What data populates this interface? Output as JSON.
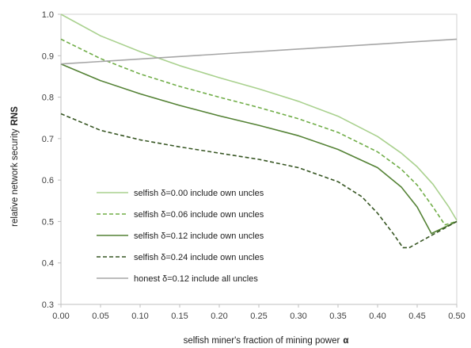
{
  "chart_data": {
    "type": "line",
    "xlabel": "selfish miner's fraction of mining power",
    "xlabel_symbol": "α",
    "ylabel": "relative network security",
    "ylabel_symbol": "RNS",
    "xlim": [
      0.0,
      0.5
    ],
    "ylim": [
      0.3,
      1.0
    ],
    "x_ticks": [
      "0.00",
      "0.05",
      "0.10",
      "0.15",
      "0.20",
      "0.25",
      "0.30",
      "0.35",
      "0.40",
      "0.45",
      "0.50"
    ],
    "y_ticks": [
      "0.3",
      "0.4",
      "0.5",
      "0.6",
      "0.7",
      "0.8",
      "0.9",
      "1.0"
    ],
    "grid": false,
    "legend_position": "lower-left",
    "series": [
      {
        "name": "selfish δ=0.00 include own uncles",
        "color": "#a9d18e",
        "dash": "solid",
        "x": [
          0.0,
          0.05,
          0.1,
          0.15,
          0.2,
          0.25,
          0.3,
          0.35,
          0.4,
          0.43,
          0.45,
          0.47,
          0.49,
          0.5
        ],
        "y": [
          1.0,
          0.948,
          0.91,
          0.876,
          0.847,
          0.82,
          0.79,
          0.754,
          0.705,
          0.665,
          0.632,
          0.59,
          0.535,
          0.503
        ]
      },
      {
        "name": "selfish δ=0.06 include own uncles",
        "color": "#70ad47",
        "dash": "dashed",
        "x": [
          0.0,
          0.05,
          0.1,
          0.15,
          0.2,
          0.25,
          0.3,
          0.35,
          0.4,
          0.43,
          0.45,
          0.47,
          0.485,
          0.5
        ],
        "y": [
          0.94,
          0.893,
          0.856,
          0.826,
          0.8,
          0.775,
          0.748,
          0.715,
          0.668,
          0.626,
          0.588,
          0.535,
          0.492,
          0.5
        ]
      },
      {
        "name": "selfish δ=0.12 include own uncles",
        "color": "#548235",
        "dash": "solid",
        "x": [
          0.0,
          0.05,
          0.1,
          0.15,
          0.2,
          0.25,
          0.3,
          0.35,
          0.4,
          0.43,
          0.45,
          0.468,
          0.5
        ],
        "y": [
          0.88,
          0.84,
          0.808,
          0.78,
          0.755,
          0.732,
          0.707,
          0.674,
          0.63,
          0.583,
          0.535,
          0.471,
          0.5
        ]
      },
      {
        "name": "selfish δ=0.24 include own uncles",
        "color": "#375623",
        "dash": "dashed",
        "x": [
          0.0,
          0.05,
          0.1,
          0.15,
          0.2,
          0.25,
          0.3,
          0.35,
          0.38,
          0.4,
          0.42,
          0.432,
          0.44,
          0.5
        ],
        "y": [
          0.76,
          0.72,
          0.697,
          0.68,
          0.665,
          0.65,
          0.63,
          0.596,
          0.56,
          0.52,
          0.47,
          0.437,
          0.437,
          0.5
        ]
      },
      {
        "name": "honest δ=0.12 include all uncles",
        "color": "#a6a6a6",
        "dash": "solid",
        "x": [
          0.0,
          0.5
        ],
        "y": [
          0.88,
          0.94
        ]
      }
    ]
  }
}
